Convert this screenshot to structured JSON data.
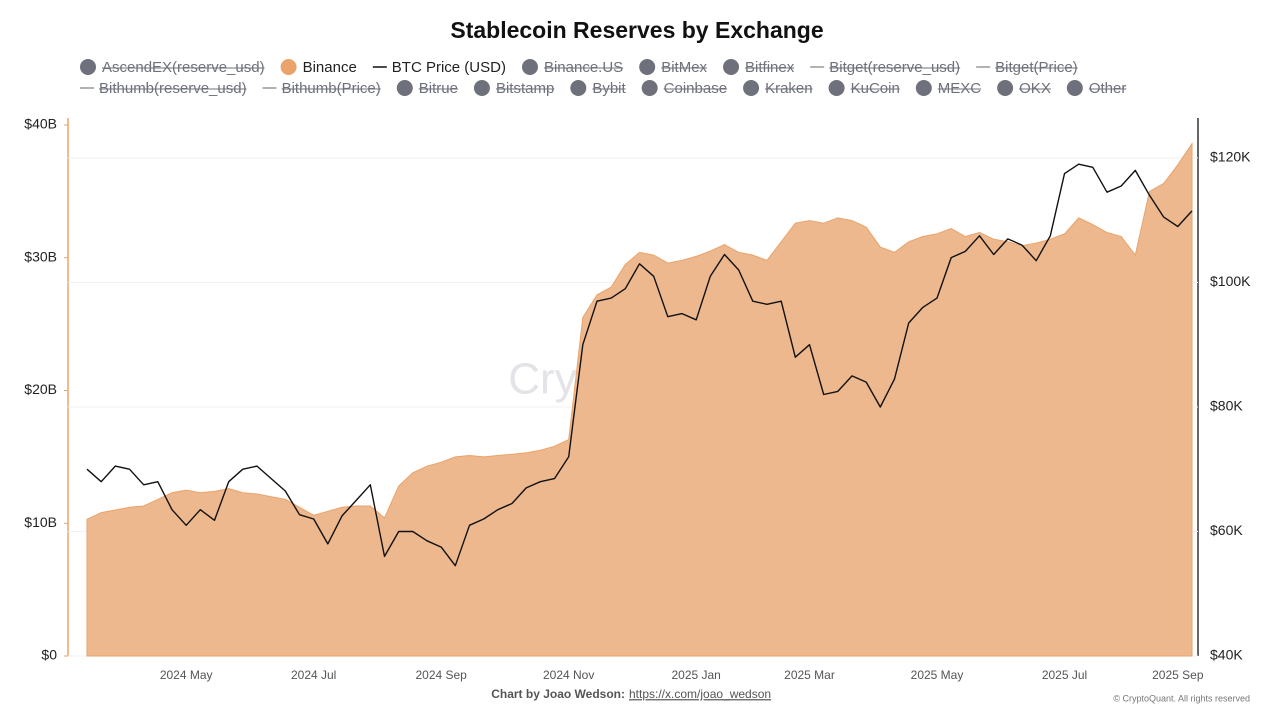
{
  "chart_data": {
    "type": "area_line",
    "title": "Stablecoin Reserves by Exchange",
    "watermark": "CryptoQuant",
    "credit_label": "Chart by Joao Wedson:",
    "credit_link": "https://x.com/joao_wedson",
    "copyright": "© CryptoQuant. All rights reserved",
    "categories": [
      null,
      null,
      null,
      null,
      null,
      null,
      null,
      "2024 May",
      null,
      null,
      null,
      null,
      null,
      null,
      null,
      null,
      "2024 Jul",
      null,
      null,
      null,
      null,
      null,
      null,
      null,
      null,
      "2024 Sep",
      null,
      null,
      null,
      null,
      null,
      null,
      null,
      null,
      "2024 Nov",
      null,
      null,
      null,
      null,
      null,
      null,
      null,
      null,
      "2025 Jan",
      null,
      null,
      null,
      null,
      null,
      null,
      null,
      "2025 Mar",
      null,
      null,
      null,
      null,
      null,
      null,
      null,
      null,
      "2025 May",
      null,
      null,
      null,
      null,
      null,
      null,
      null,
      null,
      "2025 Jul",
      null,
      null,
      null,
      null,
      null,
      null,
      null,
      "2025 Sep",
      null
    ],
    "series": [
      {
        "name": "AscendEX(reserve_usd)",
        "marker": "dot",
        "color": "#6e717c",
        "hidden": true
      },
      {
        "name": "Binance",
        "marker": "dot",
        "color": "#eaa36a",
        "fill": "#edb88e",
        "values": [
          10300000000.0,
          10800000000.0,
          11000000000.0,
          11200000000.0,
          11300000000.0,
          11800000000.0,
          12300000000.0,
          12500000000.0,
          12300000000.0,
          12400000000.0,
          12600000000.0,
          12300000000.0,
          12200000000.0,
          12000000000.0,
          11800000000.0,
          11200000000.0,
          10600000000.0,
          10900000000.0,
          11200000000.0,
          11300000000.0,
          11300000000.0,
          10400000000.0,
          12800000000.0,
          13800000000.0,
          14300000000.0,
          14600000000.0,
          15000000000.0,
          15100000000.0,
          15000000000.0,
          15100000000.0,
          15200000000.0,
          15300000000.0,
          15500000000.0,
          15800000000.0,
          16300000000.0,
          25500000000.0,
          27200000000.0,
          27800000000.0,
          29500000000.0,
          30400000000.0,
          30200000000.0,
          29600000000.0,
          29800000000.0,
          30100000000.0,
          30500000000.0,
          31000000000.0,
          30400000000.0,
          30200000000.0,
          29800000000.0,
          31200000000.0,
          32600000000.0,
          32800000000.0,
          32600000000.0,
          33000000000.0,
          32800000000.0,
          32300000000.0,
          30800000000.0,
          30400000000.0,
          31200000000.0,
          31600000000.0,
          31800000000.0,
          32200000000.0,
          31600000000.0,
          31900000000.0,
          31400000000.0,
          31200000000.0,
          30900000000.0,
          31100000000.0,
          31400000000.0,
          31800000000.0,
          33000000000.0,
          32500000000.0,
          31900000000.0,
          31600000000.0,
          30200000000.0,
          35000000000.0,
          35600000000.0,
          37000000000.0,
          38600000000.0
        ]
      },
      {
        "name": "BTC Price (USD)",
        "marker": "line",
        "color": "#111111",
        "axis": "y2",
        "values": [
          70000,
          68000,
          70500,
          70000,
          67500,
          68000,
          63500,
          61000,
          63500,
          61800,
          68000,
          70000,
          70500,
          68500,
          66500,
          62700,
          62000,
          58000,
          62500,
          65000,
          67500,
          56000,
          60000,
          60000,
          58500,
          57500,
          54500,
          61000,
          62000,
          63500,
          64500,
          67000,
          68000,
          68500,
          72000,
          90000,
          97000,
          97500,
          99000,
          103000,
          101000,
          94500,
          95000,
          94000,
          101000,
          104500,
          102000,
          97000,
          96500,
          97000,
          88000,
          90000,
          82000,
          82500,
          85000,
          84000,
          80000,
          84500,
          93500,
          96000,
          97500,
          104000,
          105000,
          107500,
          104500,
          107000,
          106000,
          103500,
          107500,
          117500,
          119000,
          118500,
          114500,
          115500,
          118000,
          114000,
          110500,
          109000,
          111500
        ]
      },
      {
        "name": "Binance.US",
        "marker": "dot",
        "color": "#6e717c",
        "hidden": true
      },
      {
        "name": "BitMex",
        "marker": "dot",
        "color": "#6e717c",
        "hidden": true
      },
      {
        "name": "Bitfinex",
        "marker": "dot",
        "color": "#6e717c",
        "hidden": true
      },
      {
        "name": "Bitget(reserve_usd)",
        "marker": "line",
        "color": "#6e717c",
        "hidden": true
      },
      {
        "name": "Bitget(Price)",
        "marker": "line",
        "color": "#6e717c",
        "hidden": true
      },
      {
        "name": "Bithumb(reserve_usd)",
        "marker": "line",
        "color": "#6e717c",
        "hidden": true
      },
      {
        "name": "Bithumb(Price)",
        "marker": "line",
        "color": "#6e717c",
        "hidden": true
      },
      {
        "name": "Bitrue",
        "marker": "dot",
        "color": "#6e717c",
        "hidden": true
      },
      {
        "name": "Bitstamp",
        "marker": "dot",
        "color": "#6e717c",
        "hidden": true
      },
      {
        "name": "Bybit",
        "marker": "dot",
        "color": "#6e717c",
        "hidden": true
      },
      {
        "name": "Coinbase",
        "marker": "dot",
        "color": "#6e717c",
        "hidden": true
      },
      {
        "name": "Kraken",
        "marker": "dot",
        "color": "#6e717c",
        "hidden": true
      },
      {
        "name": "KuCoin",
        "marker": "dot",
        "color": "#6e717c",
        "hidden": true
      },
      {
        "name": "MEXC",
        "marker": "dot",
        "color": "#6e717c",
        "hidden": true
      },
      {
        "name": "OKX",
        "marker": "dot",
        "color": "#6e717c",
        "hidden": true
      },
      {
        "name": "Other",
        "marker": "dot",
        "color": "#6e717c",
        "hidden": true
      }
    ],
    "ylim": [
      0,
      40000000000.0
    ],
    "yticks": [
      {
        "value": 0,
        "label": "$0"
      },
      {
        "value": 10000000000.0,
        "label": "$10B"
      },
      {
        "value": 20000000000.0,
        "label": "$20B"
      },
      {
        "value": 30000000000.0,
        "label": "$30B"
      },
      {
        "value": 40000000000.0,
        "label": "$40B"
      }
    ],
    "y2lim": [
      40000,
      125300
    ],
    "y2ticks": [
      {
        "value": 40000,
        "label": "$40K"
      },
      {
        "value": 60000,
        "label": "$60K"
      },
      {
        "value": 80000,
        "label": "$80K"
      },
      {
        "value": 100000,
        "label": "$100K"
      },
      {
        "value": 120000,
        "label": "$120K"
      }
    ],
    "grid": true
  }
}
